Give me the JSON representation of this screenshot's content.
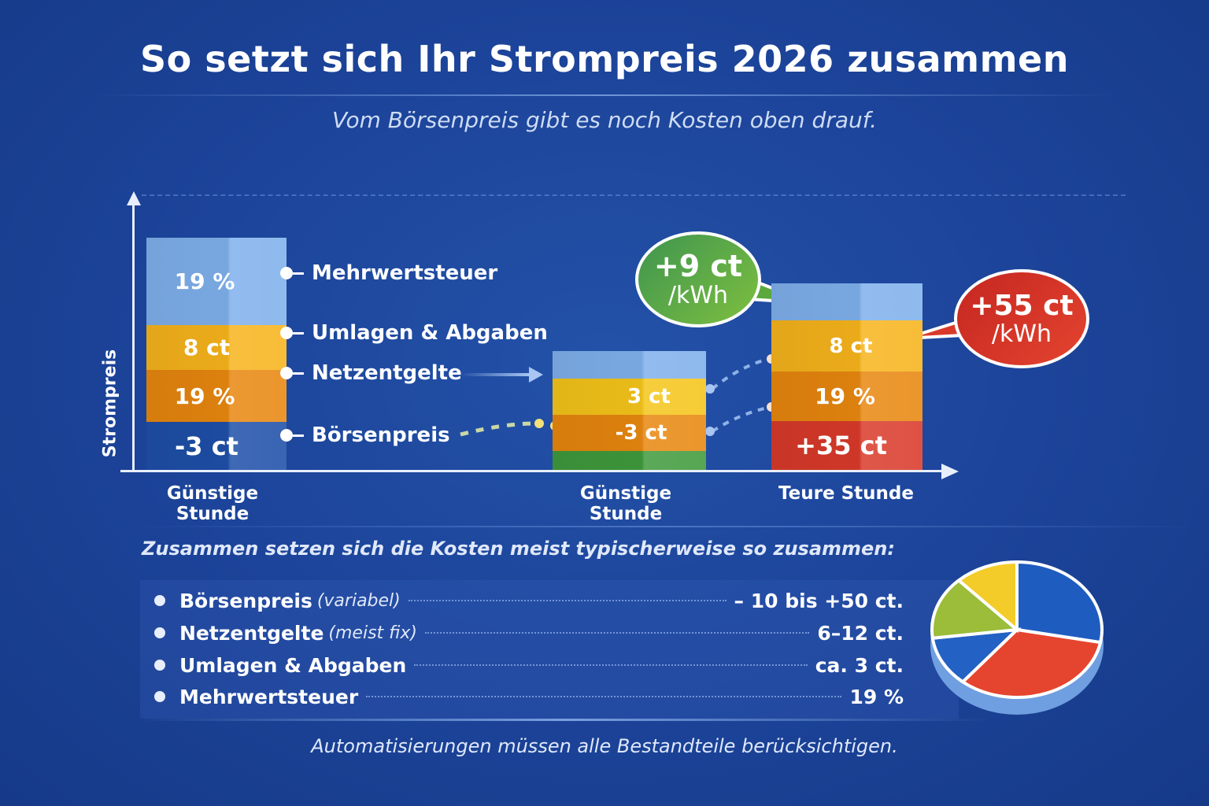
{
  "title": "So setzt sich Ihr Strompreis 2026 zusammen",
  "subtitle": "Vom Börsenpreis gibt es noch Kosten oben drauf.",
  "colors": {
    "background": "#1c449a",
    "mwst": "#7fb0ec",
    "umlagen": "#f7b41c",
    "netz": "#e8870f",
    "boerse_low": "#1e4fa8",
    "boerse_high": "#d93a2a",
    "green": "#3f9a3c",
    "bubble_green": "#5aa83e",
    "bubble_red": "#d93a2a"
  },
  "chart_data": [
    {
      "type": "bar",
      "stacked": true,
      "ylabel": "Strompreis",
      "grid": false,
      "categories": [
        "Günstige Stunde",
        "Günstige Stunde",
        "Teure Stunde"
      ],
      "legend": [
        "Mehrwertsteuer",
        "Umlagen & Abgaben",
        "Netzentgelte",
        "Börsenpreis"
      ],
      "bars": [
        {
          "category": "Günstige Stunde",
          "segments_top_to_bottom": [
            {
              "component": "Mehrwertsteuer",
              "label": "19 %"
            },
            {
              "component": "Umlagen & Abgaben",
              "label": "8 ct"
            },
            {
              "component": "Netzentgelte",
              "label": "19 %"
            },
            {
              "component": "Börsenpreis",
              "label": "-3 ct"
            }
          ]
        },
        {
          "category": "Günstige Stunde",
          "segments_top_to_bottom": [
            {
              "component": "Mehrwertsteuer",
              "label": ""
            },
            {
              "component": "Umlagen & Abgaben",
              "label": "3 ct"
            },
            {
              "component": "Netzentgelte",
              "label": "-3 ct"
            },
            {
              "component": "Börsenpreis",
              "label": ""
            }
          ],
          "callout": {
            "value": "+9 ct",
            "unit": "/kWh"
          }
        },
        {
          "category": "Teure Stunde",
          "segments_top_to_bottom": [
            {
              "component": "Mehrwertsteuer",
              "label": ""
            },
            {
              "component": "Umlagen & Abgaben",
              "label": "8 ct"
            },
            {
              "component": "Netzentgelte",
              "label": "19 %"
            },
            {
              "component": "Börsenpreis",
              "label": "+35 ct"
            }
          ],
          "callout": {
            "value": "+55 ct",
            "unit": "/kWh"
          }
        }
      ]
    },
    {
      "type": "pie",
      "style": "3d",
      "slices": [
        {
          "color": "#1f5cc0",
          "value": 28
        },
        {
          "color": "#e5452e",
          "value": 33
        },
        {
          "color": "#2361c4",
          "value": 12
        },
        {
          "color": "#9bbd3a",
          "value": 15
        },
        {
          "color": "#f3cc2a",
          "value": 12
        }
      ]
    }
  ],
  "summary": {
    "heading": "Zusammen setzen sich die Kosten meist typischerweise so zusammen:",
    "rows": [
      {
        "name": "Börsenpreis",
        "note": "(variabel)",
        "value": "– 10 bis +50 ct."
      },
      {
        "name": "Netzentgelte",
        "note": "(meist fix)",
        "value": "6–12 ct."
      },
      {
        "name": "Umlagen & Abgaben",
        "note": "",
        "value": "ca. 3 ct."
      },
      {
        "name": "Mehrwertsteuer",
        "note": "",
        "value": "19 %"
      }
    ]
  },
  "footer": "Automatisierungen müssen alle Bestandteile berücksichtigen."
}
